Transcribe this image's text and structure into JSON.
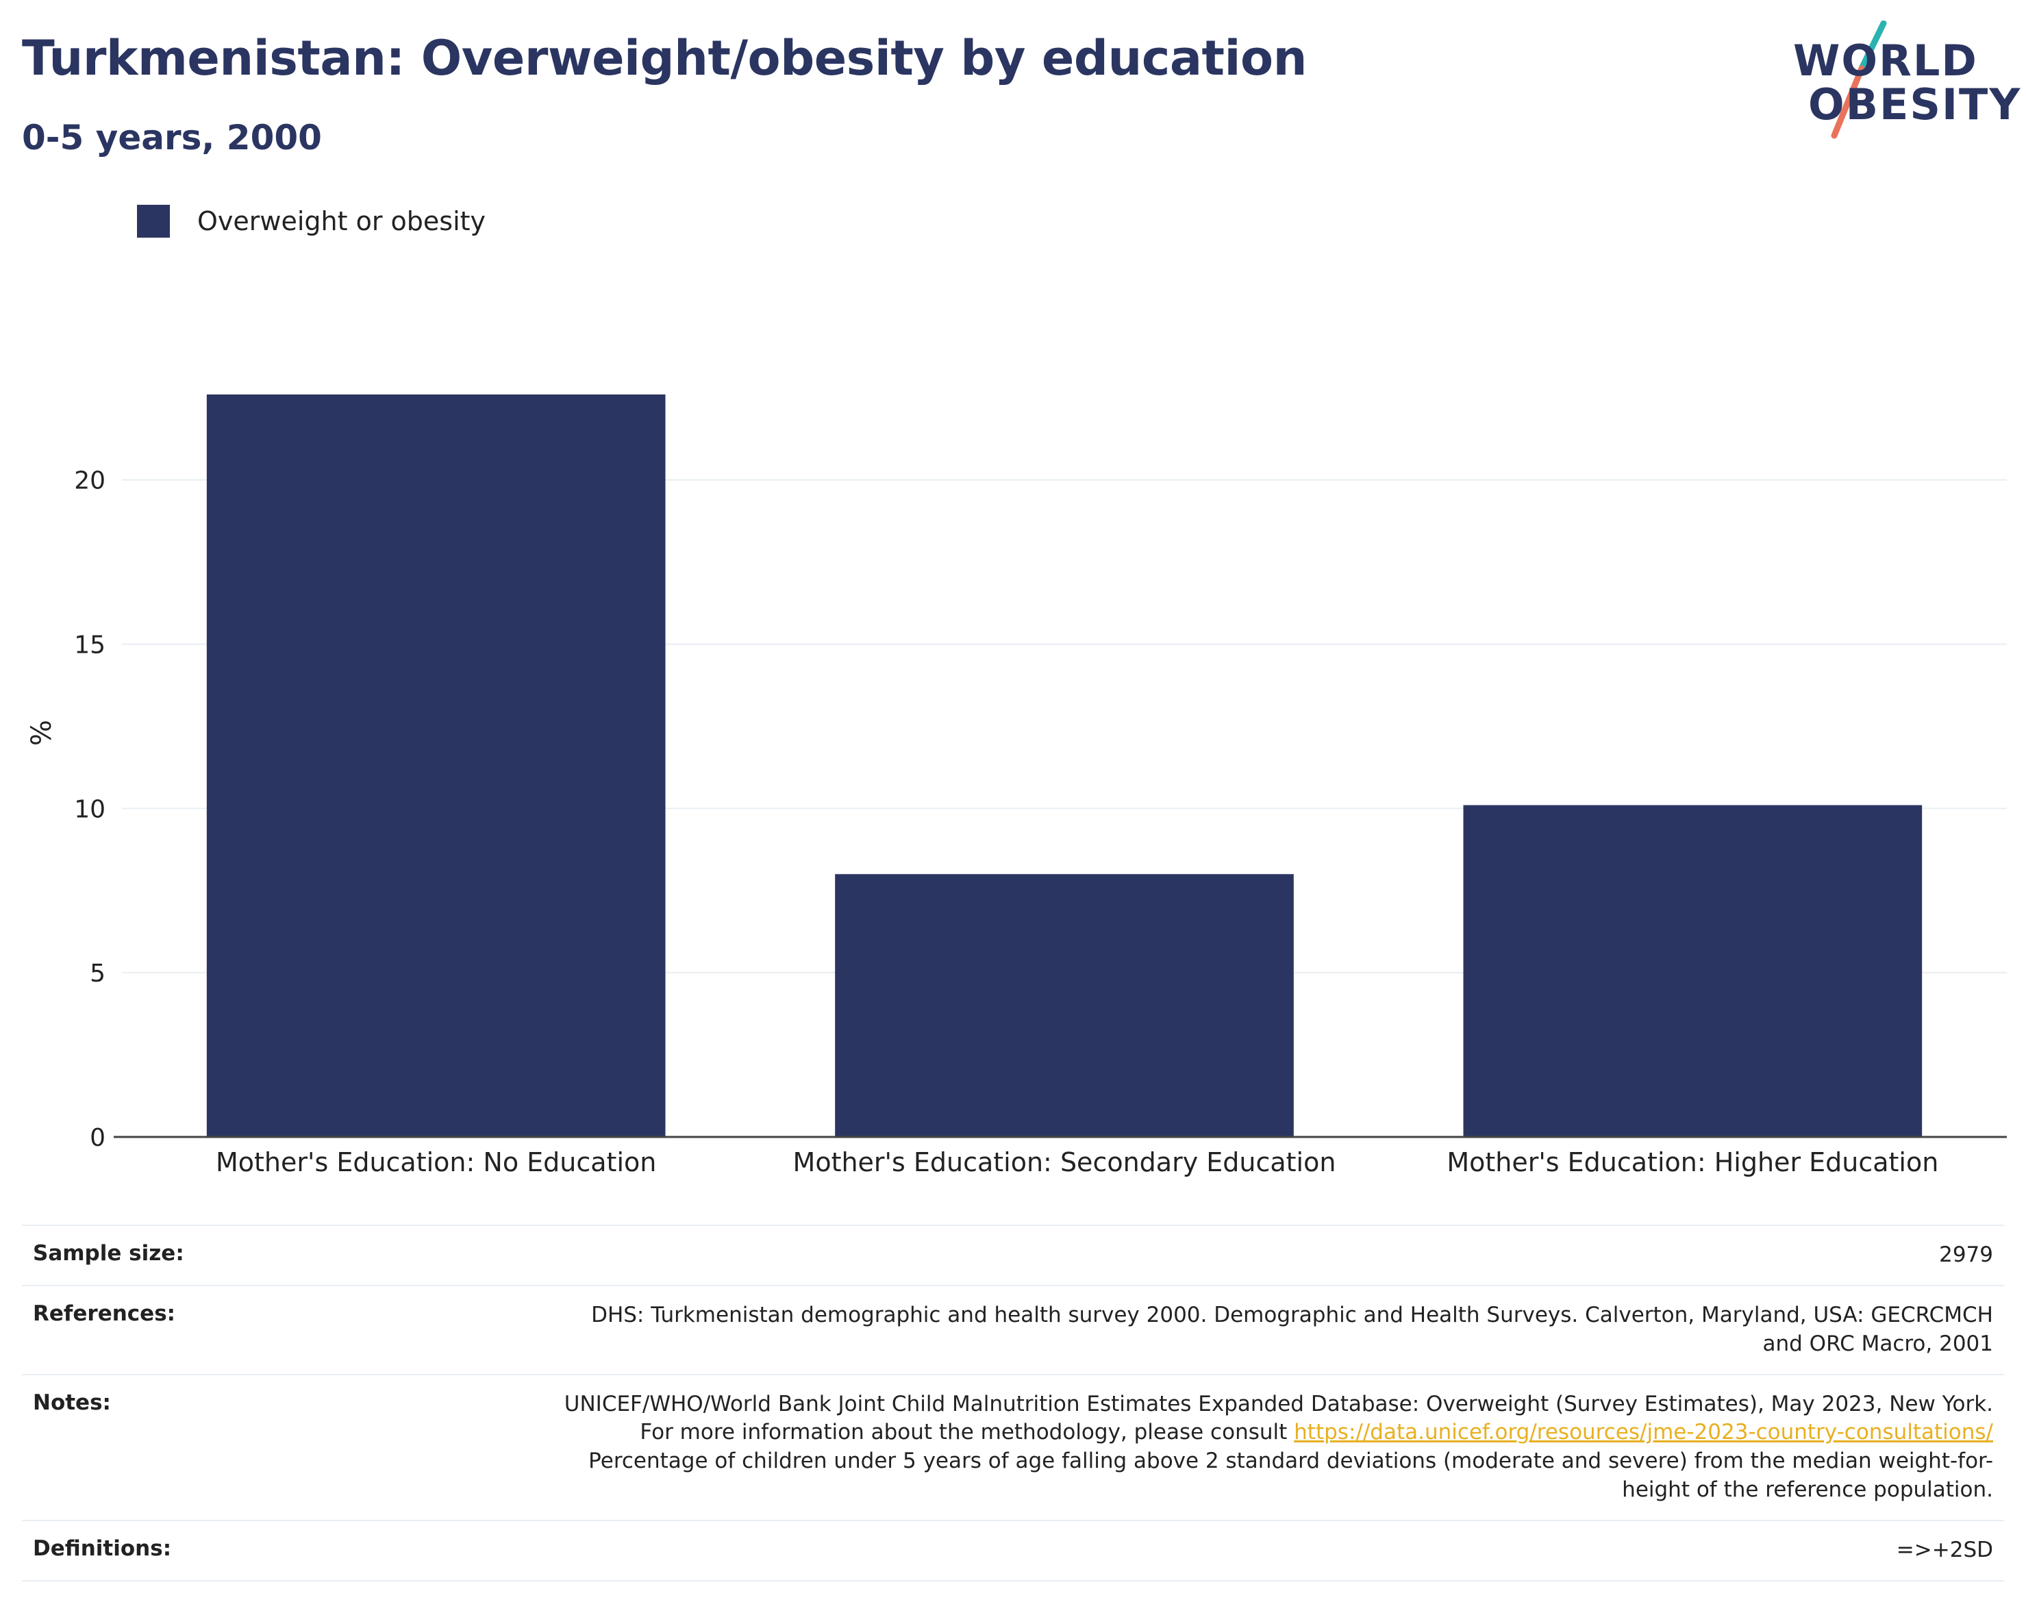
{
  "title": "Turkmenistan: Overweight/obesity by education",
  "subtitle": "0-5 years, 2000",
  "logo": {
    "line1": "WORLD",
    "line2": "OBESITY"
  },
  "colors": {
    "bar": "#2b3561",
    "title": "#2b3561",
    "link": "#e8b020",
    "logo_teal": "#2ab3b1",
    "logo_coral": "#e8735a"
  },
  "chart_data": {
    "type": "bar",
    "categories": [
      "Mother's Education: No Education",
      "Mother's Education: Secondary Education",
      "Mother's Education: Higher Education"
    ],
    "series": [
      {
        "name": "Overweight or obesity",
        "values": [
          22.6,
          8.0,
          10.1
        ]
      }
    ],
    "ylabel": "%",
    "yticks": [
      0,
      5,
      10,
      15,
      20
    ],
    "ylim": [
      0,
      24.6
    ],
    "grid": true,
    "legend_position": "top-left"
  },
  "info": {
    "sample_size": {
      "label": "Sample size:",
      "value": "2979"
    },
    "references": {
      "label": "References:",
      "value": "DHS: Turkmenistan demographic and health survey 2000. Demographic and Health Surveys. Calverton, Maryland, USA: GECRCMCH and ORC Macro, 2001"
    },
    "notes": {
      "label": "Notes:",
      "text1": "UNICEF/WHO/World Bank Joint Child Malnutrition Estimates Expanded Database: Overweight (Survey Estimates), May 2023, New York. For more information about the methodology, please consult",
      "link": "https://data.unicef.org/resources/jme-2023-country-consultations/",
      "text2": "Percentage of children under 5 years of age falling above 2 standard deviations (moderate and severe) from the median weight-for-height of the reference population."
    },
    "definitions": {
      "label": "Definitions:",
      "value": "=>+2SD"
    }
  }
}
